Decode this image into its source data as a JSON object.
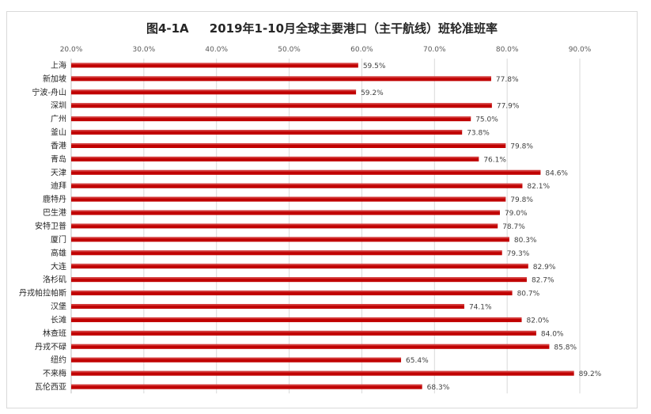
{
  "chart_data": {
    "type": "bar",
    "orientation": "horizontal",
    "title": "图4-1A     2019年1-10月全球主要港口（主干航线）班轮准班率",
    "categories": [
      "上海",
      "新加坡",
      "宁波-舟山",
      "深圳",
      "广州",
      "釜山",
      "香港",
      "青岛",
      "天津",
      "迪拜",
      "鹿特丹",
      "巴生港",
      "安特卫普",
      "厦门",
      "高雄",
      "大连",
      "洛杉矶",
      "丹戎帕拉帕斯",
      "汉堡",
      "长滩",
      "林查班",
      "丹戎不碌",
      "纽约",
      "不来梅",
      "瓦伦西亚"
    ],
    "values": [
      59.5,
      77.8,
      59.2,
      77.9,
      75.0,
      73.8,
      79.8,
      76.1,
      84.6,
      82.1,
      79.8,
      79.0,
      78.7,
      80.3,
      79.3,
      82.9,
      82.7,
      80.7,
      74.1,
      82.0,
      84.0,
      85.8,
      65.4,
      89.2,
      68.3
    ],
    "value_labels": [
      "59.5%",
      "77.8%",
      "59.2%",
      "77.9%",
      "75.0%",
      "73.8%",
      "79.8%",
      "76.1%",
      "84.6%",
      "82.1%",
      "79.8%",
      "79.0%",
      "78.7%",
      "80.3%",
      "79.3%",
      "82.9%",
      "82.7%",
      "80.7%",
      "74.1%",
      "82.0%",
      "84.0%",
      "85.8%",
      "65.4%",
      "89.2%",
      "68.3%"
    ],
    "xlim": [
      20,
      90
    ],
    "xticks": [
      20,
      30,
      40,
      50,
      60,
      70,
      80,
      90
    ],
    "xtick_labels": [
      "20.0%",
      "30.0%",
      "40.0%",
      "50.0%",
      "60.0%",
      "70.0%",
      "80.0%",
      "90.0%"
    ],
    "axis_position": "top",
    "grid": true,
    "bar_color": "#c00000",
    "xlabel": "",
    "ylabel": ""
  }
}
